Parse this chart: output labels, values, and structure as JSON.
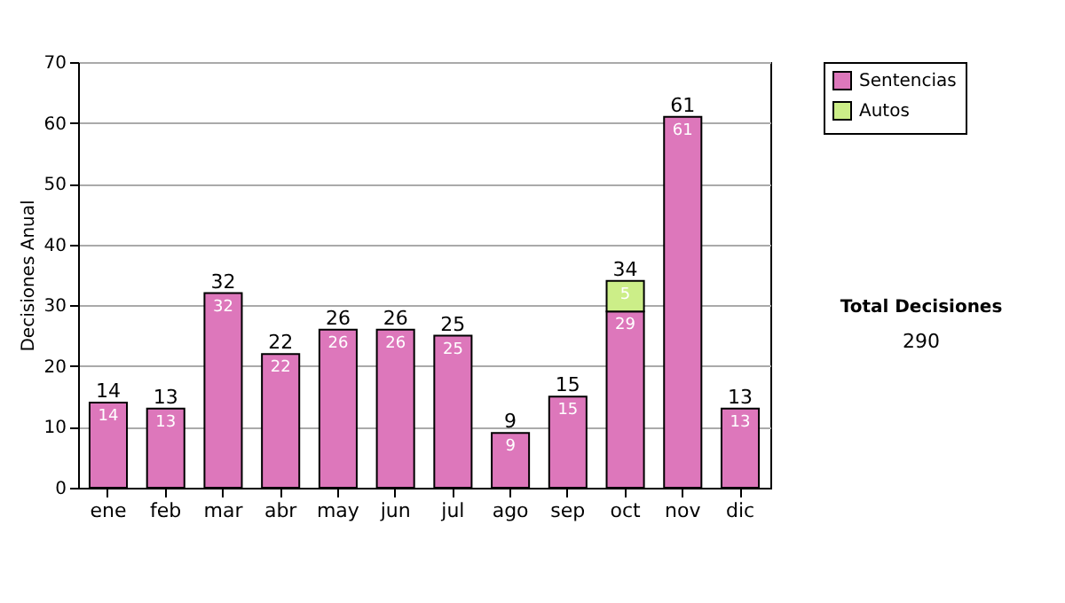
{
  "chart_data": {
    "type": "bar",
    "stacked": true,
    "ylabel": "Decisiones Anual",
    "categories": [
      "ene",
      "feb",
      "mar",
      "abr",
      "may",
      "jun",
      "jul",
      "ago",
      "sep",
      "oct",
      "nov",
      "dic"
    ],
    "series": [
      {
        "name": "Sentencias",
        "color": "#dd77bb",
        "values": [
          14,
          13,
          32,
          22,
          26,
          26,
          25,
          9,
          15,
          29,
          61,
          13
        ]
      },
      {
        "name": "Autos",
        "color": "#ccee88",
        "values": [
          null,
          null,
          null,
          null,
          null,
          null,
          null,
          null,
          null,
          5,
          null,
          null
        ]
      }
    ],
    "totals": [
      "14",
      "13",
      "32",
      "22",
      "26",
      "26",
      "25",
      "9",
      "15",
      "34",
      "61",
      "13"
    ],
    "data_labels": true,
    "ylim": [
      0,
      70
    ],
    "yticks": [
      0,
      10,
      20,
      30,
      40,
      50,
      60,
      70
    ],
    "grid": "y",
    "legend": "right",
    "annotations": [
      "Total Decisiones",
      "290"
    ]
  }
}
